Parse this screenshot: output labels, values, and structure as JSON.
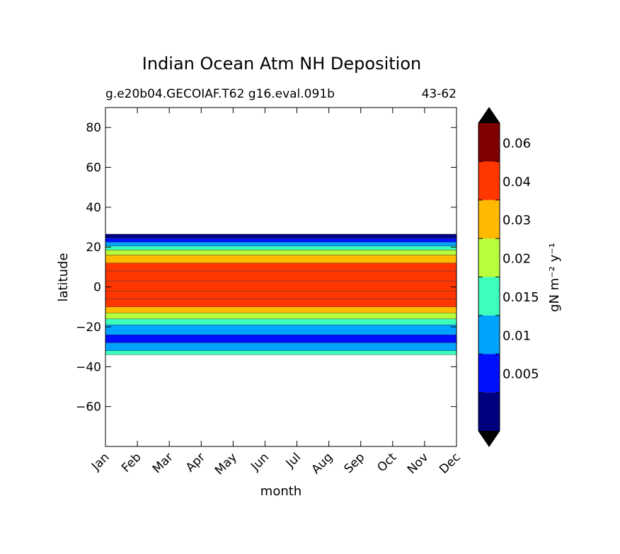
{
  "chart_data": {
    "type": "heatmap",
    "title": "Indian Ocean Atm NH Deposition",
    "subtitle_left": "g.e20b04.GECOIAF.T62 g16.eval.091b",
    "subtitle_right": "43-62",
    "xlabel": "month",
    "ylabel": "latitude",
    "x_categories": [
      "Jan",
      "Feb",
      "Mar",
      "Apr",
      "May",
      "Jun",
      "Jul",
      "Aug",
      "Sep",
      "Oct",
      "Nov",
      "Dec"
    ],
    "xlim": [
      0,
      11
    ],
    "ylim": [
      -80,
      90
    ],
    "y_ticks": [
      80,
      60,
      40,
      20,
      0,
      -20,
      -40,
      -60
    ],
    "y_tick_labels": [
      "80",
      "60",
      "40",
      "20",
      "0",
      "−20",
      "−40",
      "−60"
    ],
    "colorbar": {
      "label": "gN m⁻² y⁻¹",
      "levels": [
        0.0,
        0.005,
        0.01,
        0.015,
        0.02,
        0.03,
        0.04,
        0.06,
        0.07
      ],
      "tick_values": [
        0.005,
        0.01,
        0.015,
        0.02,
        0.03,
        0.04,
        0.06
      ],
      "tick_labels": [
        "0.005",
        "0.01",
        "0.015",
        "0.02",
        "0.03",
        "0.04",
        "0.06"
      ],
      "colors": [
        "#00007f",
        "#0010ff",
        "#00a4ff",
        "#3cffbc",
        "#b8ff3c",
        "#ffb900",
        "#ff3600",
        "#7f0000"
      ],
      "extend_low_color": "#000000",
      "extend_high_color": "#000000"
    },
    "latitude_profile": [
      {
        "lat": 26.5,
        "value": 0.0
      },
      {
        "lat": 24.5,
        "value": 0.005
      },
      {
        "lat": 22.5,
        "value": 0.012
      },
      {
        "lat": 20.5,
        "value": 0.017
      },
      {
        "lat": 18.5,
        "value": 0.022
      },
      {
        "lat": 16.0,
        "value": 0.032
      },
      {
        "lat": 12.0,
        "value": 0.045
      },
      {
        "lat": 8.0,
        "value": 0.045
      },
      {
        "lat": 3.0,
        "value": 0.045
      },
      {
        "lat": -2.0,
        "value": 0.045
      },
      {
        "lat": -6.0,
        "value": 0.045
      },
      {
        "lat": -10.0,
        "value": 0.035
      },
      {
        "lat": -13.0,
        "value": 0.025
      },
      {
        "lat": -16.0,
        "value": 0.017
      },
      {
        "lat": -19.0,
        "value": 0.012
      },
      {
        "lat": -24.0,
        "value": 0.007
      },
      {
        "lat": -28.0,
        "value": 0.012
      },
      {
        "lat": -32.0,
        "value": 0.017
      },
      {
        "lat": -34.0,
        "value": 0.012
      }
    ],
    "data_extent": {
      "lat_min": -34,
      "lat_max": 27
    }
  }
}
